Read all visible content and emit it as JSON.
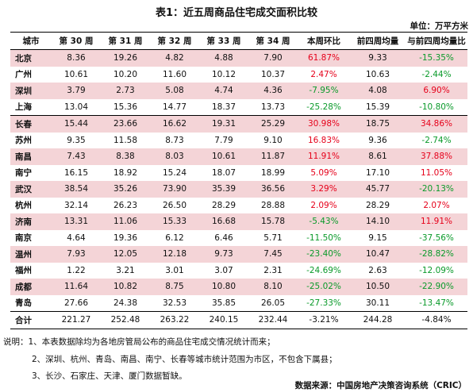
{
  "title": "表1：近五周商品住宅成交面积比较",
  "unit": "单位：万平方米",
  "table": {
    "headers": [
      "城市",
      "第 30 周",
      "第 31 周",
      "第 32 周",
      "第 33 周",
      "第 34 周",
      "本周环比",
      "前四周均量",
      "与前四周均量比"
    ],
    "rows": [
      [
        "北京",
        "8.36",
        "19.26",
        "4.82",
        "4.88",
        "7.90",
        "61.87%",
        "9.33",
        "-15.35%"
      ],
      [
        "广州",
        "10.61",
        "10.20",
        "11.60",
        "10.12",
        "10.37",
        "2.47%",
        "10.63",
        "-2.44%"
      ],
      [
        "深圳",
        "3.79",
        "2.73",
        "5.08",
        "4.74",
        "4.36",
        "-7.95%",
        "4.08",
        "6.90%"
      ],
      [
        "上海",
        "13.04",
        "15.36",
        "14.77",
        "18.37",
        "13.73",
        "-25.28%",
        "15.39",
        "-10.80%"
      ],
      [
        "长春",
        "15.44",
        "23.66",
        "16.62",
        "19.31",
        "25.29",
        "30.98%",
        "18.75",
        "34.86%"
      ],
      [
        "苏州",
        "9.35",
        "11.58",
        "8.73",
        "7.79",
        "9.10",
        "16.83%",
        "9.36",
        "-2.74%"
      ],
      [
        "南昌",
        "7.43",
        "8.38",
        "8.03",
        "10.61",
        "11.87",
        "11.91%",
        "8.61",
        "37.88%"
      ],
      [
        "南宁",
        "16.15",
        "18.92",
        "15.24",
        "18.07",
        "18.99",
        "5.09%",
        "17.10",
        "11.05%"
      ],
      [
        "武汉",
        "38.54",
        "35.26",
        "73.90",
        "35.39",
        "36.56",
        "3.29%",
        "45.77",
        "-20.13%"
      ],
      [
        "杭州",
        "32.14",
        "26.23",
        "26.50",
        "28.29",
        "28.88",
        "2.09%",
        "28.29",
        "2.07%"
      ],
      [
        "济南",
        "13.31",
        "11.06",
        "15.33",
        "16.68",
        "15.78",
        "-5.43%",
        "14.10",
        "11.91%"
      ],
      [
        "南京",
        "4.64",
        "19.36",
        "6.12",
        "6.46",
        "5.71",
        "-11.50%",
        "9.15",
        "-37.56%"
      ],
      [
        "温州",
        "7.93",
        "12.05",
        "12.18",
        "9.73",
        "7.45",
        "-23.40%",
        "10.47",
        "-28.82%"
      ],
      [
        "福州",
        "1.22",
        "3.21",
        "3.01",
        "3.07",
        "2.31",
        "-24.69%",
        "2.63",
        "-12.09%"
      ],
      [
        "成都",
        "11.64",
        "10.82",
        "8.75",
        "10.80",
        "8.10",
        "-25.02%",
        "10.50",
        "-22.90%"
      ],
      [
        "青岛",
        "27.66",
        "24.38",
        "32.53",
        "35.85",
        "26.05",
        "-27.33%",
        "30.11",
        "-13.47%"
      ]
    ],
    "total": [
      "合计",
      "221.27",
      "252.48",
      "263.22",
      "240.15",
      "232.44",
      "-3.21%",
      "244.28",
      "-4.84%"
    ]
  },
  "notes": [
    "说明：1、本表数据除均为各地房管局公布的商品住宅成交情况统计而来；",
    "2、深圳、杭州、青岛、南昌、南宁、长春等城市统计范围为市区，不包含下属县；",
    "3、长沙、石家庄、天津、厦门数据暂缺。"
  ],
  "source": "数据来源：中国房地产决策咨询系统（CRIC）",
  "colors": {
    "row_highlight": "#f4d4d7",
    "positive": "#e6001a",
    "negative": "#0a9a2a"
  }
}
